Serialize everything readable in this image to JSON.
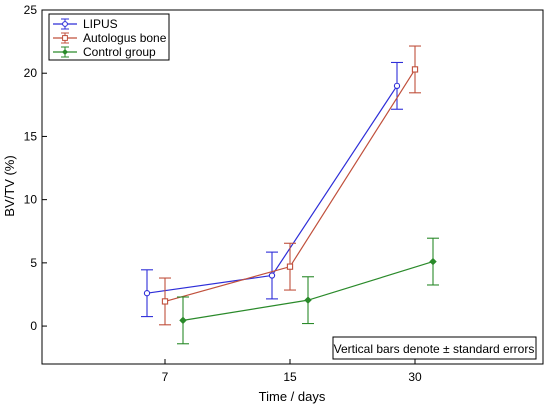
{
  "chart_data": {
    "type": "line",
    "xlabel": "Time / days",
    "ylabel": "BV/TV (%)",
    "categories": [
      "7",
      "15",
      "30"
    ],
    "ylim": [
      -3,
      25
    ],
    "yticks": [
      0,
      5,
      10,
      15,
      20,
      25
    ],
    "grid": false,
    "legend_position": "top-left",
    "note": "Vertical bars denote ± standard errors",
    "series": [
      {
        "name": "LIPUS",
        "color": "#2e2ed8",
        "marker": "circle",
        "x_offset": -0.5,
        "values": [
          2.6,
          4.0,
          19.0
        ],
        "errors": [
          1.85,
          1.85,
          1.85
        ]
      },
      {
        "name": "Autologus bone",
        "color": "#c0503c",
        "marker": "square",
        "x_offset": 0.0,
        "values": [
          1.95,
          4.7,
          20.3
        ],
        "errors": [
          1.85,
          1.85,
          1.85
        ]
      },
      {
        "name": "Control group",
        "color": "#2a8a2a",
        "marker": "diamond",
        "x_offset": 0.5,
        "values": [
          0.45,
          2.05,
          5.1
        ],
        "errors": [
          1.85,
          1.85,
          1.85
        ]
      }
    ]
  }
}
